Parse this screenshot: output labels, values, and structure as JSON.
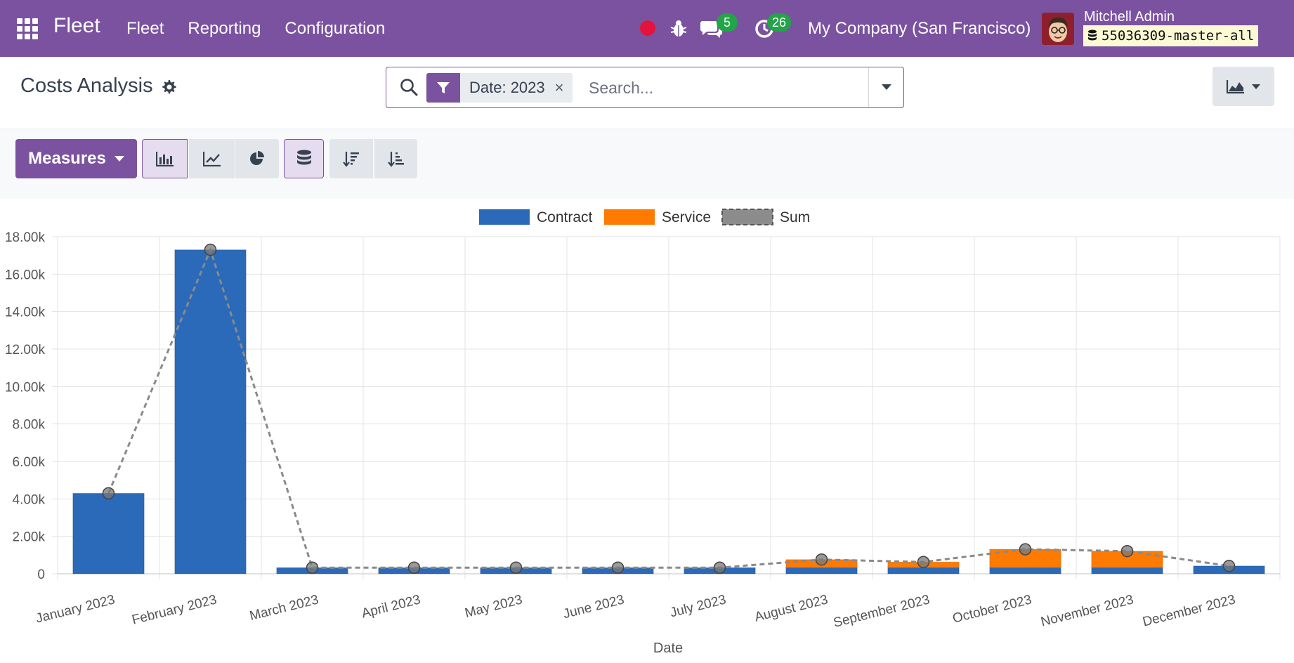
{
  "navbar": {
    "brand": "Fleet",
    "menu": [
      "Fleet",
      "Reporting",
      "Configuration"
    ],
    "messages_count": "5",
    "activities_count": "26",
    "company": "My Company (San Francisco)",
    "user_name": "Mitchell Admin",
    "database": "55036309-master-all",
    "accent_color": "#7b52a0"
  },
  "control_panel": {
    "title": "Costs Analysis",
    "facet_label": "Date: 2023",
    "facet_close": "×",
    "search_placeholder": "Search..."
  },
  "toolbar": {
    "measures_label": "Measures",
    "buttons": [
      "bar-chart-icon",
      "line-chart-icon",
      "pie-chart-icon",
      "stacked-icon",
      "sort-descending-icon",
      "sort-ascending-icon"
    ],
    "active": [
      "bar-chart-icon",
      "stacked-icon"
    ]
  },
  "chart_data": {
    "type": "bar",
    "stacked": true,
    "categories": [
      "January 2023",
      "February 2023",
      "March 2023",
      "April 2023",
      "May 2023",
      "June 2023",
      "July 2023",
      "August 2023",
      "September 2023",
      "October 2023",
      "November 2023",
      "December 2023"
    ],
    "series": [
      {
        "name": "Contract",
        "color": "#2a6ab8",
        "values": [
          4300,
          17300,
          330,
          330,
          330,
          330,
          330,
          330,
          330,
          330,
          330,
          420
        ]
      },
      {
        "name": "Service",
        "color": "#ff7a00",
        "values": [
          0,
          0,
          0,
          0,
          0,
          0,
          0,
          430,
          300,
          980,
          880,
          0
        ]
      }
    ],
    "line": {
      "name": "Sum",
      "color": "#8a8a8a",
      "dashed": true,
      "values": [
        4300,
        17300,
        330,
        330,
        330,
        330,
        330,
        760,
        630,
        1310,
        1210,
        420
      ]
    },
    "yticks": [
      "0",
      "2.00k",
      "4.00k",
      "6.00k",
      "8.00k",
      "10.00k",
      "12.00k",
      "14.00k",
      "16.00k",
      "18.00k"
    ],
    "ylim": [
      0,
      18000
    ],
    "xlabel": "Date",
    "ylabel": "",
    "grid": true,
    "legend_position": "top"
  }
}
